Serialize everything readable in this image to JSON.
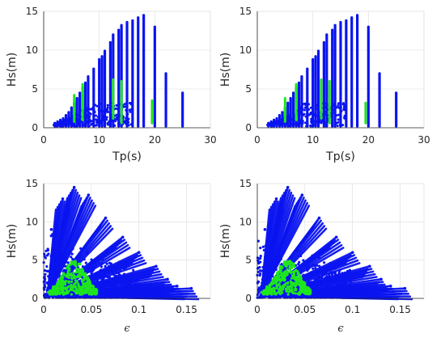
{
  "chart_data": [
    {
      "type": "scatter",
      "xlabel": "Tp(s)",
      "ylabel": "Hs(m)",
      "xlim": [
        0,
        30
      ],
      "ylim": [
        0,
        15
      ],
      "xticks": [
        "0",
        "10",
        "20",
        "30"
      ],
      "yticks": [
        "0",
        "5",
        "10",
        "15"
      ],
      "grid": true,
      "colors": {
        "all": "#0a14f0",
        "selected": "#1ee61e"
      },
      "series": [
        {
          "values": [
            {
              "x": 2.0,
              "ymax": 0.6
            },
            {
              "x": 2.5,
              "ymax": 0.8
            },
            {
              "x": 3.0,
              "ymax": 1.0
            },
            {
              "x": 3.5,
              "ymax": 1.2
            },
            {
              "x": 4.0,
              "ymax": 1.6
            },
            {
              "x": 4.5,
              "ymax": 2.0
            },
            {
              "x": 5.0,
              "ymax": 2.6
            },
            {
              "x": 5.5,
              "ymax": 3.2
            },
            {
              "x": 6.0,
              "ymax": 3.8
            },
            {
              "x": 6.5,
              "ymax": 4.5
            },
            {
              "x": 7.0,
              "ymax": 5.2
            },
            {
              "x": 7.5,
              "ymax": 5.8
            },
            {
              "x": 8.0,
              "ymax": 6.6
            },
            {
              "x": 9.0,
              "ymax": 7.6
            },
            {
              "x": 10.0,
              "ymax": 8.8
            },
            {
              "x": 10.5,
              "ymax": 9.2
            },
            {
              "x": 11.0,
              "ymax": 9.9
            },
            {
              "x": 12.0,
              "ymax": 11.0
            },
            {
              "x": 12.5,
              "ymax": 12.0
            },
            {
              "x": 13.5,
              "ymax": 12.6
            },
            {
              "x": 14.0,
              "ymax": 13.2
            },
            {
              "x": 15.0,
              "ymax": 13.6
            },
            {
              "x": 16.0,
              "ymax": 13.8
            },
            {
              "x": 17.0,
              "ymax": 14.2
            },
            {
              "x": 18.0,
              "ymax": 14.5
            },
            {
              "x": 20.0,
              "ymax": 13.0
            },
            {
              "x": 22.0,
              "ymax": 7.0
            },
            {
              "x": 25.0,
              "ymax": 4.5
            }
          ]
        },
        {
          "values": [
            {
              "x": 5.5,
              "ymin": 0.8,
              "ymax": 4.2
            },
            {
              "x": 7.0,
              "ymin": 1.0,
              "ymax": 5.6
            },
            {
              "x": 12.5,
              "ymin": 1.2,
              "ymax": 6.2
            },
            {
              "x": 14.0,
              "ymin": 0.6,
              "ymax": 6.0
            },
            {
              "x": 19.5,
              "ymin": 0.6,
              "ymax": 3.5
            }
          ]
        }
      ]
    },
    {
      "type": "scatter",
      "xlabel": "Tp(s)",
      "ylabel": "Hs(m)",
      "xlim": [
        0,
        30
      ],
      "ylim": [
        0,
        15
      ],
      "xticks": [
        "0",
        "10",
        "20",
        "30"
      ],
      "yticks": [
        "0",
        "5",
        "10",
        "15"
      ],
      "grid": true,
      "colors": {
        "all": "#0a14f0",
        "selected": "#1ee61e"
      },
      "series": [
        {
          "values": [
            {
              "x": 2.0,
              "ymax": 0.6
            },
            {
              "x": 2.5,
              "ymax": 0.8
            },
            {
              "x": 3.0,
              "ymax": 1.0
            },
            {
              "x": 3.5,
              "ymax": 1.2
            },
            {
              "x": 4.0,
              "ymax": 1.6
            },
            {
              "x": 4.5,
              "ymax": 2.0
            },
            {
              "x": 5.0,
              "ymax": 2.6
            },
            {
              "x": 5.5,
              "ymax": 3.2
            },
            {
              "x": 6.0,
              "ymax": 3.8
            },
            {
              "x": 6.5,
              "ymax": 4.5
            },
            {
              "x": 7.0,
              "ymax": 5.2
            },
            {
              "x": 7.5,
              "ymax": 5.8
            },
            {
              "x": 8.0,
              "ymax": 6.6
            },
            {
              "x": 9.0,
              "ymax": 7.6
            },
            {
              "x": 10.0,
              "ymax": 8.8
            },
            {
              "x": 10.5,
              "ymax": 9.2
            },
            {
              "x": 11.0,
              "ymax": 9.9
            },
            {
              "x": 12.0,
              "ymax": 11.0
            },
            {
              "x": 12.5,
              "ymax": 12.0
            },
            {
              "x": 13.5,
              "ymax": 12.6
            },
            {
              "x": 14.0,
              "ymax": 13.2
            },
            {
              "x": 15.0,
              "ymax": 13.6
            },
            {
              "x": 16.0,
              "ymax": 13.8
            },
            {
              "x": 17.0,
              "ymax": 14.2
            },
            {
              "x": 18.0,
              "ymax": 14.5
            },
            {
              "x": 20.0,
              "ymax": 13.0
            },
            {
              "x": 22.0,
              "ymax": 7.0
            },
            {
              "x": 25.0,
              "ymax": 4.5
            }
          ]
        },
        {
          "values": [
            {
              "x": 5.0,
              "ymin": 0.8,
              "ymax": 3.8
            },
            {
              "x": 7.0,
              "ymin": 1.0,
              "ymax": 5.6
            },
            {
              "x": 11.5,
              "ymin": 1.2,
              "ymax": 6.2
            },
            {
              "x": 13.0,
              "ymin": 0.6,
              "ymax": 6.0
            },
            {
              "x": 19.5,
              "ymin": 0.6,
              "ymax": 3.2
            }
          ]
        }
      ]
    },
    {
      "type": "scatter",
      "xlabel": "ϵ",
      "ylabel": "Hs(m)",
      "xlim": [
        0,
        0.175
      ],
      "ylim": [
        0,
        15
      ],
      "xticks": [
        "0",
        "0.05",
        "0.1",
        "0.15"
      ],
      "yticks": [
        "0",
        "5",
        "10",
        "15"
      ],
      "grid": true,
      "colors": {
        "all": "#0a14f0",
        "selected": "#1ee61e"
      },
      "series": [
        {
          "values": [
            {
              "x": 0.032,
              "y": 14.5
            },
            {
              "x": 0.02,
              "y": 13.0
            },
            {
              "x": 0.047,
              "y": 13.5
            },
            {
              "x": 0.065,
              "y": 10.5
            },
            {
              "x": 0.083,
              "y": 8.0
            },
            {
              "x": 0.1,
              "y": 6.0
            },
            {
              "x": 0.118,
              "y": 4.2
            },
            {
              "x": 0.13,
              "y": 2.5
            },
            {
              "x": 0.155,
              "y": 1.3
            },
            {
              "x": 0.14,
              "y": 1.6
            },
            {
              "x": 0.008,
              "y": 9.0
            },
            {
              "x": 0.01,
              "y": 4.0
            },
            {
              "x": 0.06,
              "y": 0.6
            },
            {
              "x": 0.09,
              "y": 0.8
            }
          ]
        },
        {
          "values": [
            {
              "x": 0.005,
              "y": 0.8
            },
            {
              "x": 0.01,
              "y": 1.5
            },
            {
              "x": 0.02,
              "y": 2.2
            },
            {
              "x": 0.03,
              "y": 3.0
            },
            {
              "x": 0.04,
              "y": 3.6
            },
            {
              "x": 0.045,
              "y": 2.6
            },
            {
              "x": 0.05,
              "y": 1.6
            },
            {
              "x": 0.055,
              "y": 1.0
            },
            {
              "x": 0.038,
              "y": 4.5
            },
            {
              "x": 0.026,
              "y": 4.0
            },
            {
              "x": 0.015,
              "y": 1.2
            }
          ]
        }
      ]
    },
    {
      "type": "scatter",
      "xlabel": "ϵ",
      "ylabel": "Hs(m)",
      "xlim": [
        0,
        0.175
      ],
      "ylim": [
        0,
        15
      ],
      "xticks": [
        "0",
        "0.05",
        "0.1",
        "0.15"
      ],
      "yticks": [
        "0",
        "5",
        "10",
        "15"
      ],
      "grid": true,
      "colors": {
        "all": "#0a14f0",
        "selected": "#1ee61e"
      },
      "series": [
        {
          "values": [
            {
              "x": 0.032,
              "y": 14.5
            },
            {
              "x": 0.02,
              "y": 13.0
            },
            {
              "x": 0.047,
              "y": 13.5
            },
            {
              "x": 0.065,
              "y": 10.5
            },
            {
              "x": 0.083,
              "y": 8.0
            },
            {
              "x": 0.1,
              "y": 6.0
            },
            {
              "x": 0.118,
              "y": 4.2
            },
            {
              "x": 0.13,
              "y": 2.5
            },
            {
              "x": 0.155,
              "y": 1.3
            },
            {
              "x": 0.14,
              "y": 1.6
            },
            {
              "x": 0.008,
              "y": 9.0
            },
            {
              "x": 0.01,
              "y": 4.0
            },
            {
              "x": 0.06,
              "y": 0.6
            },
            {
              "x": 0.09,
              "y": 0.8
            }
          ]
        },
        {
          "values": [
            {
              "x": 0.005,
              "y": 0.8
            },
            {
              "x": 0.01,
              "y": 1.5
            },
            {
              "x": 0.02,
              "y": 2.2
            },
            {
              "x": 0.03,
              "y": 3.0
            },
            {
              "x": 0.04,
              "y": 3.6
            },
            {
              "x": 0.045,
              "y": 2.6
            },
            {
              "x": 0.05,
              "y": 1.6
            },
            {
              "x": 0.055,
              "y": 1.0
            },
            {
              "x": 0.038,
              "y": 4.5
            },
            {
              "x": 0.026,
              "y": 4.0
            },
            {
              "x": 0.015,
              "y": 1.2
            }
          ]
        }
      ]
    }
  ]
}
